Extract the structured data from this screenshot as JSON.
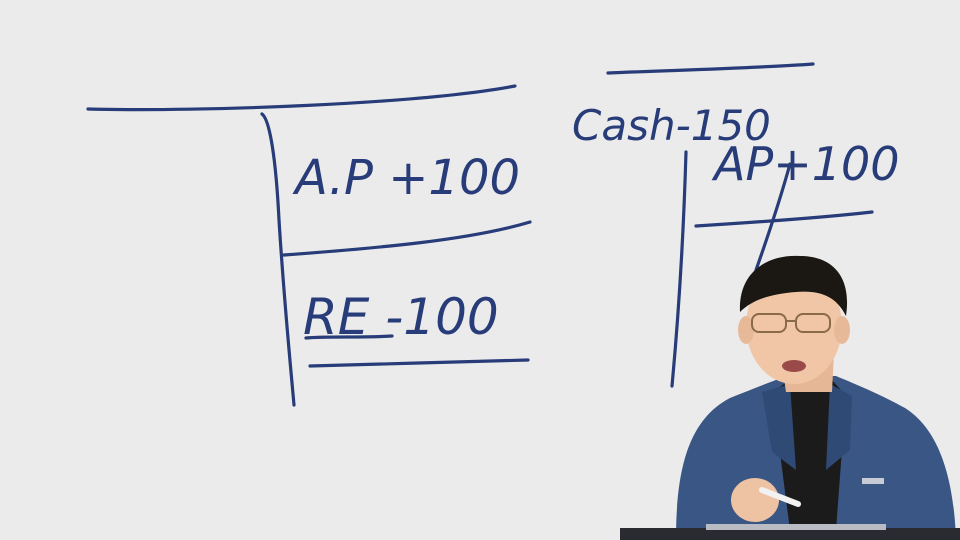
{
  "whiteboard": {
    "entries": {
      "ap_plus": "A.P +100",
      "re_minus": "RE -100",
      "cash_minus": "Cash-150",
      "ap_plus_right": "AP+100"
    }
  },
  "presenter": {
    "shirt_color": "#1b1b1b",
    "jacket_color": "#3a5684",
    "skin_color": "#f0c6a7",
    "hair_color": "#1b1814"
  },
  "ink_color": "#273c78"
}
